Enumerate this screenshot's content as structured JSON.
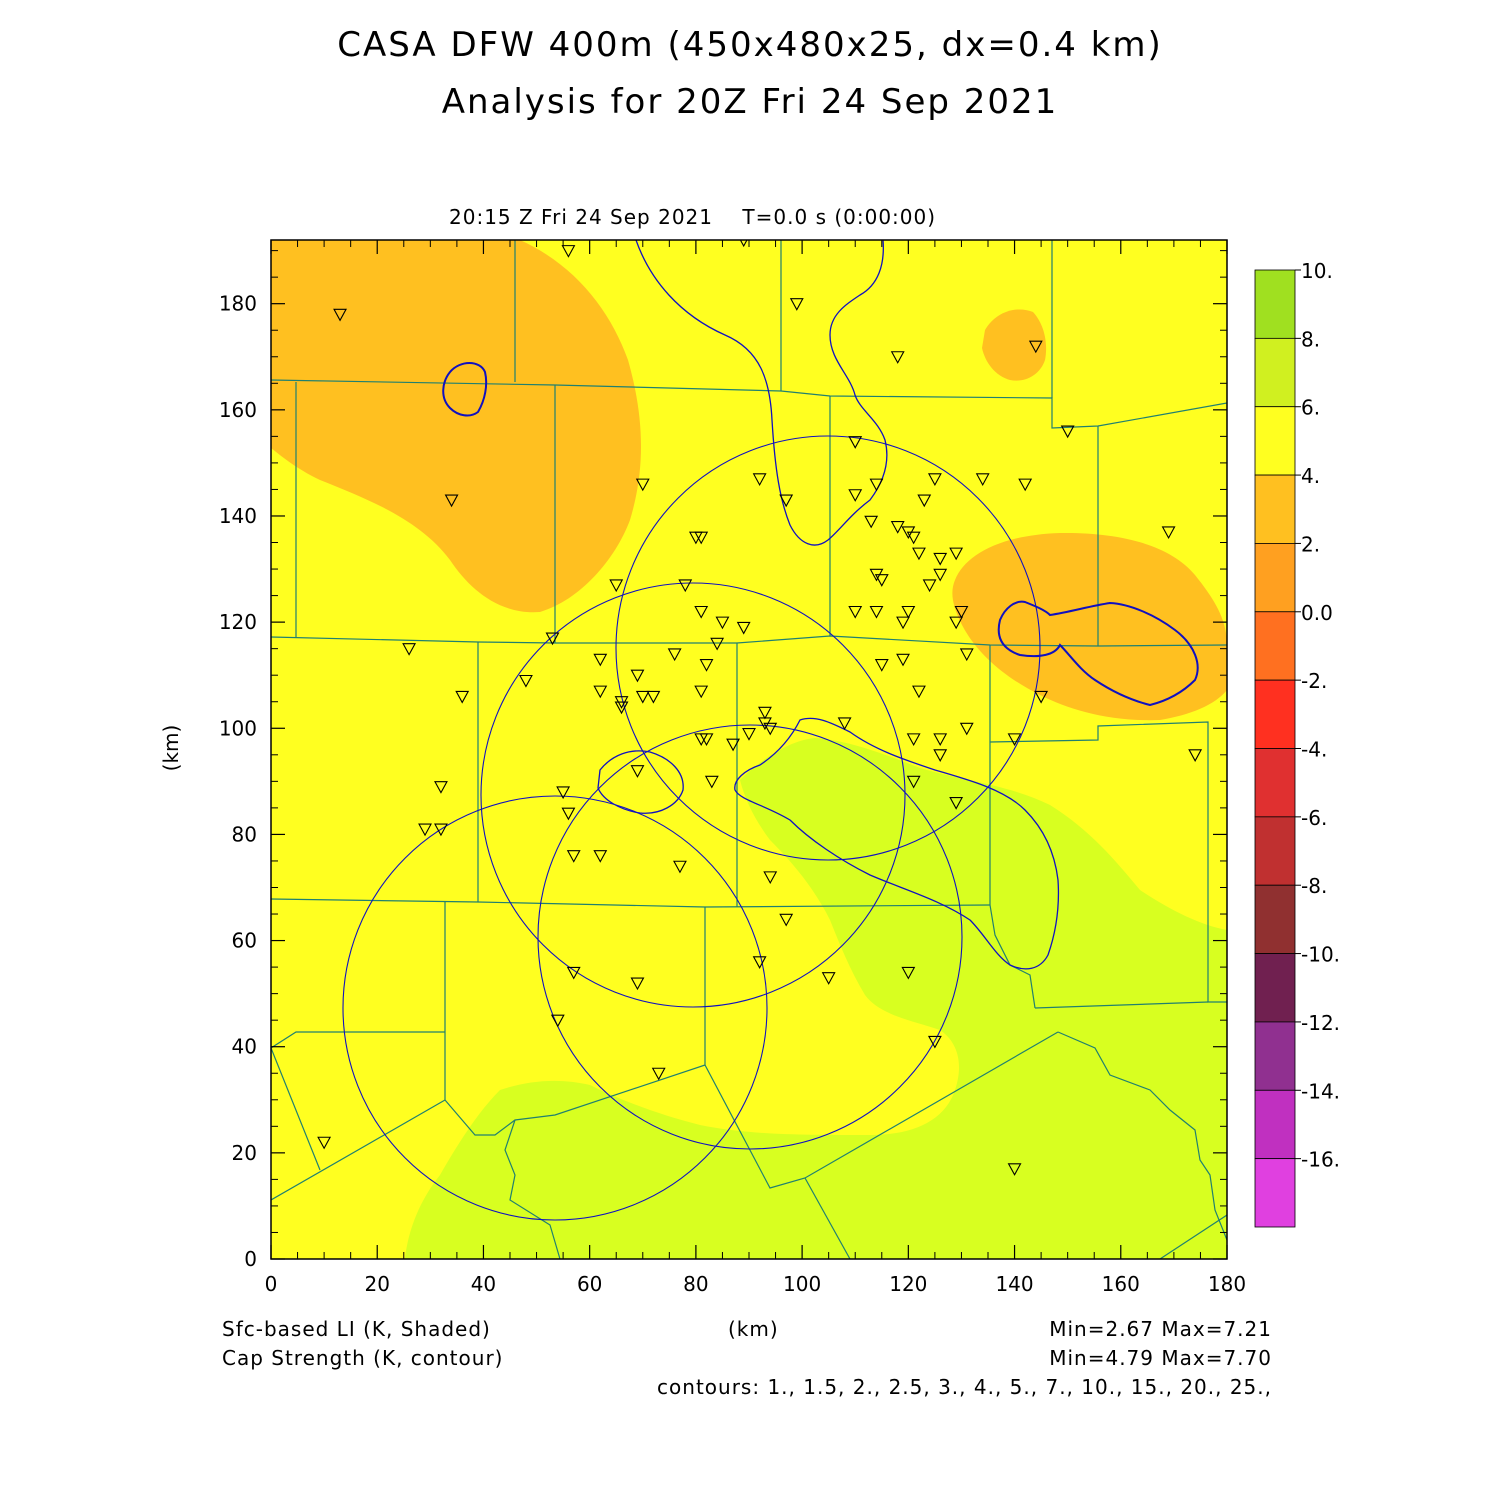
{
  "header": {
    "title_line1": "CASA DFW 400m (450x480x25, dx=0.4 km)",
    "title_line2": "Analysis for 20Z Fri 24 Sep 2021",
    "time_label": "20:15 Z Fri 24 Sep 2021    T=0.0 s (0:00:00)"
  },
  "axes": {
    "x_label": "(km)",
    "y_label": "(km)",
    "x_range": [
      0,
      180
    ],
    "y_range": [
      0,
      192
    ],
    "x_ticks": [
      "0",
      "20",
      "40",
      "60",
      "80",
      "100",
      "120",
      "140",
      "160",
      "180"
    ],
    "y_ticks": [
      "0",
      "20",
      "40",
      "60",
      "80",
      "100",
      "120",
      "140",
      "160",
      "180"
    ]
  },
  "colorbar": {
    "labels": [
      "10.",
      "8.",
      "6.",
      "4.",
      "2.",
      "0.0",
      "-2.",
      "-4.",
      "-6.",
      "-8.",
      "-10.",
      "-12.",
      "-14.",
      "-16."
    ],
    "colors": [
      "#a0e020",
      "#d0f020",
      "#ffff20",
      "#ffc020",
      "#ffa020",
      "#ff7020",
      "#ff3020",
      "#e03030",
      "#c03030",
      "#903030",
      "#702050",
      "#903090",
      "#c030c0",
      "#e040e0"
    ]
  },
  "fields": {
    "background_color": "#ffff20",
    "orange_color": "#ffc020",
    "green_color": "#d8ff20",
    "contour_color": "#1010c0",
    "boundary_color": "#208070"
  },
  "footer": {
    "shaded_label": "Sfc-based LI (K, Shaded)",
    "contour_label": "Cap Strength (K, contour)",
    "x_unit": "(km)",
    "shaded_minmax": "Min=2.67 Max=7.21",
    "contour_minmax": "Min=4.79 Max=7.70",
    "contours": "contours: 1., 1.5, 2., 2.5, 3., 4., 5., 7., 10., 15., 20., 25.,"
  },
  "stations": [
    [
      13,
      178
    ],
    [
      56,
      190
    ],
    [
      89,
      192
    ],
    [
      99,
      180
    ],
    [
      118,
      170
    ],
    [
      144,
      172
    ],
    [
      150,
      156
    ],
    [
      34,
      143
    ],
    [
      70,
      146
    ],
    [
      92,
      147
    ],
    [
      97,
      143
    ],
    [
      110,
      154
    ],
    [
      110,
      144
    ],
    [
      114,
      146
    ],
    [
      113,
      139
    ],
    [
      118,
      138
    ],
    [
      120,
      137
    ],
    [
      121,
      136
    ],
    [
      123,
      143
    ],
    [
      125,
      147
    ],
    [
      134,
      147
    ],
    [
      142,
      146
    ],
    [
      169,
      137
    ],
    [
      81,
      136
    ],
    [
      80,
      136
    ],
    [
      65,
      127
    ],
    [
      78,
      127
    ],
    [
      114,
      129
    ],
    [
      115,
      128
    ],
    [
      122,
      133
    ],
    [
      126,
      132
    ],
    [
      126,
      129
    ],
    [
      129,
      133
    ],
    [
      124,
      127
    ],
    [
      110,
      122
    ],
    [
      114,
      122
    ],
    [
      119,
      120
    ],
    [
      120,
      122
    ],
    [
      129,
      120
    ],
    [
      130,
      122
    ],
    [
      81,
      122
    ],
    [
      85,
      120
    ],
    [
      89,
      119
    ],
    [
      53,
      117
    ],
    [
      26,
      115
    ],
    [
      36,
      106
    ],
    [
      48,
      109
    ],
    [
      62,
      113
    ],
    [
      62,
      107
    ],
    [
      66,
      105
    ],
    [
      69,
      110
    ],
    [
      70,
      106
    ],
    [
      72,
      106
    ],
    [
      76,
      114
    ],
    [
      81,
      107
    ],
    [
      82,
      112
    ],
    [
      84,
      116
    ],
    [
      66,
      104
    ],
    [
      122,
      107
    ],
    [
      131,
      114
    ],
    [
      115,
      112
    ],
    [
      119,
      113
    ],
    [
      145,
      106
    ],
    [
      93,
      103
    ],
    [
      93,
      101
    ],
    [
      94,
      100
    ],
    [
      90,
      99
    ],
    [
      82,
      98
    ],
    [
      87,
      97
    ],
    [
      81,
      98
    ],
    [
      108,
      101
    ],
    [
      121,
      98
    ],
    [
      126,
      98
    ],
    [
      126,
      95
    ],
    [
      131,
      100
    ],
    [
      140,
      98
    ],
    [
      174,
      95
    ],
    [
      69,
      92
    ],
    [
      83,
      90
    ],
    [
      32,
      89
    ],
    [
      55,
      88
    ],
    [
      56,
      84
    ],
    [
      29,
      81
    ],
    [
      32,
      81
    ],
    [
      57,
      76
    ],
    [
      62,
      76
    ],
    [
      77,
      74
    ],
    [
      94,
      72
    ],
    [
      121,
      90
    ],
    [
      129,
      86
    ],
    [
      97,
      64
    ],
    [
      92,
      56
    ],
    [
      57,
      54
    ],
    [
      69,
      52
    ],
    [
      105,
      53
    ],
    [
      120,
      54
    ],
    [
      54,
      45
    ],
    [
      73,
      35
    ],
    [
      125,
      41
    ],
    [
      10,
      22
    ],
    [
      140,
      17
    ]
  ]
}
